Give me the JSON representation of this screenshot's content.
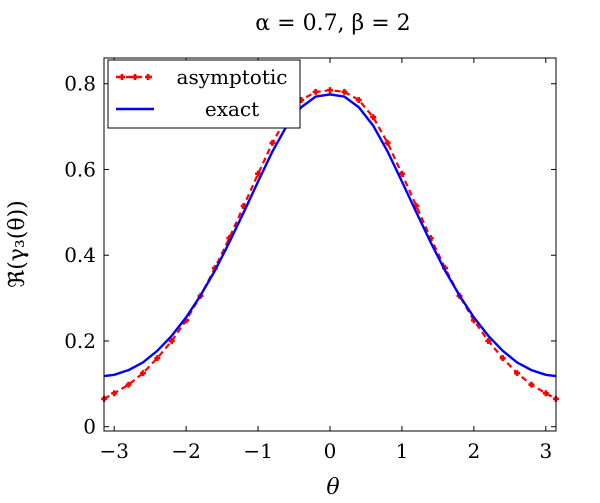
{
  "chart_data": {
    "type": "line",
    "title": "α = 0.7,    β = 2",
    "xlabel": "θ",
    "ylabel": "ℜ(γ₃(θ))",
    "xlim": [
      -3.14159,
      3.14159
    ],
    "ylim": [
      -0.01,
      0.86
    ],
    "xticks": [
      -3,
      -2,
      -1,
      0,
      1,
      2,
      3
    ],
    "xtick_labels": [
      "−3",
      "−2",
      "−1",
      "0",
      "1",
      "2",
      "3"
    ],
    "yticks": [
      0,
      0.2,
      0.4,
      0.6,
      0.8
    ],
    "ytick_labels": [
      "0",
      "0.2",
      "0.4",
      "0.6",
      "0.8"
    ],
    "grid": false,
    "legend_position": "top-left",
    "series": [
      {
        "name": "asymptotic",
        "color": "#ff0000",
        "style": "dashed-markers",
        "x": [
          -3.14,
          -3.0,
          -2.8,
          -2.6,
          -2.4,
          -2.2,
          -2.0,
          -1.8,
          -1.6,
          -1.4,
          -1.2,
          -1.0,
          -0.8,
          -0.6,
          -0.4,
          -0.2,
          0.0,
          0.2,
          0.4,
          0.6,
          0.8,
          1.0,
          1.2,
          1.4,
          1.6,
          1.8,
          2.0,
          2.2,
          2.4,
          2.6,
          2.8,
          3.0,
          3.14
        ],
        "y": [
          0.065,
          0.078,
          0.098,
          0.125,
          0.16,
          0.2,
          0.248,
          0.305,
          0.37,
          0.44,
          0.515,
          0.59,
          0.662,
          0.722,
          0.762,
          0.781,
          0.785,
          0.781,
          0.762,
          0.722,
          0.662,
          0.59,
          0.515,
          0.44,
          0.37,
          0.305,
          0.248,
          0.2,
          0.16,
          0.125,
          0.098,
          0.078,
          0.065
        ]
      },
      {
        "name": "exact",
        "color": "#0000ff",
        "style": "solid",
        "x": [
          -3.14,
          -3.0,
          -2.8,
          -2.6,
          -2.4,
          -2.2,
          -2.0,
          -1.8,
          -1.6,
          -1.4,
          -1.2,
          -1.0,
          -0.8,
          -0.6,
          -0.4,
          -0.2,
          0.0,
          0.2,
          0.4,
          0.6,
          0.8,
          1.0,
          1.2,
          1.4,
          1.6,
          1.8,
          2.0,
          2.2,
          2.4,
          2.6,
          2.8,
          3.0,
          3.14
        ],
        "y": [
          0.118,
          0.121,
          0.132,
          0.15,
          0.177,
          0.212,
          0.255,
          0.306,
          0.364,
          0.43,
          0.5,
          0.572,
          0.642,
          0.702,
          0.745,
          0.77,
          0.775,
          0.77,
          0.745,
          0.702,
          0.642,
          0.572,
          0.5,
          0.43,
          0.364,
          0.306,
          0.255,
          0.212,
          0.177,
          0.15,
          0.132,
          0.121,
          0.118
        ]
      }
    ]
  }
}
